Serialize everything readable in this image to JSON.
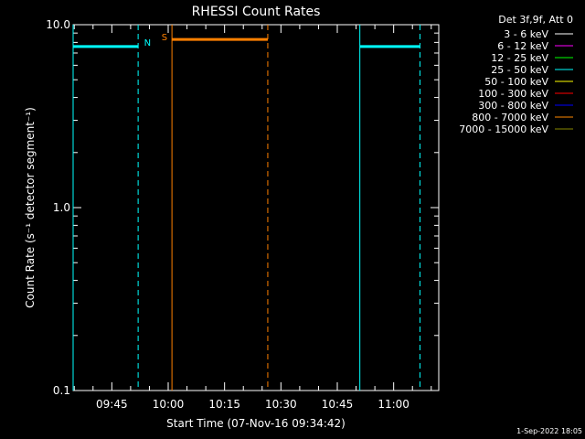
{
  "chart_data": {
    "type": "line",
    "title": "RHESSI Count Rates",
    "xlabel": "Start Time (07-Nov-16 09:34:42)",
    "ylabel": "Count Rate (s⁻¹ detector segment⁻¹)",
    "y_scale": "log",
    "ylim": [
      0.1,
      10.0
    ],
    "y_ticks": [
      "10.0",
      "1.0",
      "0.1"
    ],
    "xlim": [
      "09:34:42",
      "11:12:00"
    ],
    "x_ticks": [
      "09:45",
      "10:00",
      "10:15",
      "10:30",
      "10:45",
      "11:00"
    ],
    "grid": false,
    "legend_placement": "right",
    "legend_header": "Det 3f,9f, Att 0",
    "legend": [
      {
        "label": "3 - 6 keV",
        "color": "#ffffff"
      },
      {
        "label": "6 - 12 keV",
        "color": "#ff00ff"
      },
      {
        "label": "12 - 25 keV",
        "color": "#00ff00"
      },
      {
        "label": "25 - 50 keV",
        "color": "#00ffff"
      },
      {
        "label": "50 - 100 keV",
        "color": "#ffff00"
      },
      {
        "label": "100 - 300 keV",
        "color": "#ff0000"
      },
      {
        "label": "300 - 800 keV",
        "color": "#0000ff"
      },
      {
        "label": "800 - 7000 keV",
        "color": "#ff8800"
      },
      {
        "label": "7000 - 15000 keV",
        "color": "#888800"
      }
    ],
    "series": [
      {
        "color": "#00ffff",
        "x": [
          "09:34:42",
          "09:52:00"
        ],
        "y": [
          7.6,
          7.6
        ]
      },
      {
        "color": "#ff8000",
        "x": [
          "10:01:00",
          "10:26:30"
        ],
        "y": [
          8.3,
          8.3
        ]
      },
      {
        "color": "#00ffff",
        "x": [
          "10:51:00",
          "11:07:00"
        ],
        "y": [
          7.6,
          7.6
        ]
      }
    ],
    "vlines": [
      {
        "x": "09:34:42",
        "color": "#00ffff",
        "style": "solid"
      },
      {
        "x": "09:52:00",
        "color": "#00ffff",
        "style": "dashed"
      },
      {
        "x": "10:01:00",
        "color": "#ff8000",
        "style": "solid"
      },
      {
        "x": "10:26:30",
        "color": "#ff8000",
        "style": "dashed"
      },
      {
        "x": "10:51:00",
        "color": "#00ffff",
        "style": "solid"
      },
      {
        "x": "11:07:00",
        "color": "#00ffff",
        "style": "dashed"
      }
    ],
    "annotations": [
      {
        "text": "N",
        "x": "09:54:30",
        "color": "#00ffff"
      },
      {
        "text": "S",
        "x": "09:59:00",
        "color": "#ff8000"
      }
    ]
  },
  "timestamp": "1-Sep-2022 18:05"
}
